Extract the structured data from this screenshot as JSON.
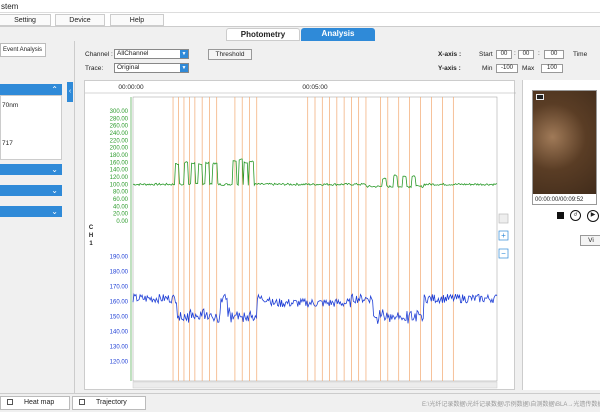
{
  "window": {
    "title": "stem"
  },
  "menu": {
    "items": [
      "Setting",
      "Device",
      "Help"
    ]
  },
  "main_tabs": [
    {
      "label": "Photometry",
      "active": false
    },
    {
      "label": "Analysis",
      "active": true
    }
  ],
  "left_panel": {
    "event_tab": "Event Analysis",
    "box1_lines": [
      "70nm",
      "717"
    ]
  },
  "controls": {
    "channel_label": "Channel :",
    "channel_value": "AllChannel",
    "trace_label": "Trace:",
    "trace_value": "Original",
    "threshold_button": "Threshold",
    "xaxis_label": "X-axis :",
    "start_label": "Start",
    "start_time": [
      "00",
      "00",
      "00"
    ],
    "time_label": "Time",
    "yaxis_label": "Y-axis :",
    "min_label": "Min",
    "min_value": "-100",
    "max_label": "Max",
    "max_value": "100"
  },
  "chart_data": {
    "type": "line",
    "time_ticks": [
      "00:00:00",
      "00:05:00"
    ],
    "channel_label": "CH1",
    "top_axis": {
      "ticks": [
        300,
        280,
        260,
        240,
        220,
        200,
        180,
        160,
        140,
        120,
        100,
        80,
        60,
        40,
        20,
        0
      ],
      "range": [
        0,
        300
      ]
    },
    "bottom_axis": {
      "ticks": [
        190,
        180,
        170,
        160,
        150,
        140,
        130,
        120
      ],
      "range": [
        115,
        195
      ]
    },
    "series": [
      {
        "color": "#2a9a2a",
        "baseline": 100,
        "peaks": [
          {
            "t": 0.12,
            "v": 155
          },
          {
            "t": 0.145,
            "v": 160
          },
          {
            "t": 0.165,
            "v": 158
          },
          {
            "t": 0.185,
            "v": 155
          },
          {
            "t": 0.205,
            "v": 158
          },
          {
            "t": 0.225,
            "v": 157
          },
          {
            "t": 0.28,
            "v": 165
          },
          {
            "t": 0.295,
            "v": 168
          },
          {
            "t": 0.31,
            "v": 160
          },
          {
            "t": 0.325,
            "v": 162
          },
          {
            "t": 0.69,
            "v": 122
          },
          {
            "t": 0.72,
            "v": 130
          },
          {
            "t": 0.745,
            "v": 128
          },
          {
            "t": 0.77,
            "v": 128
          }
        ]
      },
      {
        "color": "#1f3fd6",
        "baseline": 162
      }
    ],
    "event_lines_t": [
      0.11,
      0.125,
      0.14,
      0.155,
      0.17,
      0.19,
      0.21,
      0.23,
      0.28,
      0.3,
      0.32,
      0.34,
      0.48,
      0.5,
      0.52,
      0.54,
      0.56,
      0.58,
      0.6,
      0.62,
      0.64,
      0.68,
      0.7,
      0.73,
      0.76,
      0.79,
      0.82,
      0.85,
      0.88
    ]
  },
  "zoom_buttons": [
    "+",
    "−"
  ],
  "video": {
    "time": "00:00:00/00:09:52",
    "view_button": "Vi"
  },
  "status": {
    "heatmap": "Heat map",
    "trajectory": "Trajectory",
    "path": "E:\\光纤记录数据\\光纤记录数据\\示例数据\\自测数据\\BLA→光遗传数据"
  }
}
